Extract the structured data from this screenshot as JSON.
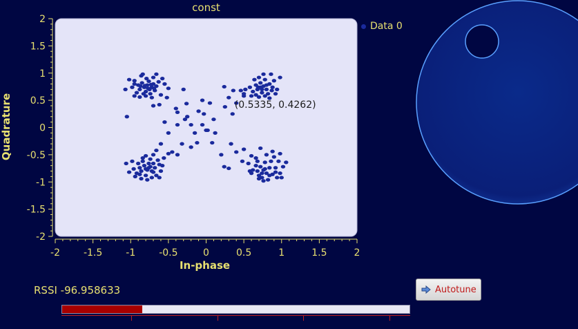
{
  "chart_data": {
    "type": "scatter",
    "title": "const",
    "xlabel": "In-phase",
    "ylabel": "Quadrature",
    "xlim": [
      -2,
      2
    ],
    "ylim": [
      -2,
      2
    ],
    "xticks": [
      "-2",
      "-1.5",
      "-1",
      "-0.5",
      "0",
      "0.5",
      "1",
      "1.5",
      "2"
    ],
    "yticks": [
      "2",
      "1.5",
      "1",
      "0.5",
      "0",
      "-0.5",
      "-1",
      "-1.5",
      "-2"
    ],
    "xtick_values": [
      -2,
      -1.5,
      -1,
      -0.5,
      0,
      0.5,
      1,
      1.5,
      2
    ],
    "ytick_values": [
      2,
      1.5,
      1,
      0.5,
      0,
      -0.5,
      -1,
      -1.5,
      -2
    ],
    "legend_position": "top-right",
    "annotation": "(0.5335, 0.4262)",
    "annotation_point": [
      0.5335,
      0.4262
    ],
    "series": [
      {
        "name": "Data 0",
        "color": "#1a2a9c",
        "points": [
          [
            -0.78,
            0.78
          ],
          [
            -0.82,
            0.74
          ],
          [
            -0.75,
            0.7
          ],
          [
            -0.7,
            0.8
          ],
          [
            -0.85,
            0.82
          ],
          [
            -0.8,
            0.66
          ],
          [
            -0.72,
            0.74
          ],
          [
            -0.88,
            0.7
          ],
          [
            -0.76,
            0.85
          ],
          [
            -0.68,
            0.68
          ],
          [
            -0.83,
            0.62
          ],
          [
            -0.74,
            0.62
          ],
          [
            -0.9,
            0.78
          ],
          [
            -0.66,
            0.76
          ],
          [
            -0.79,
            0.9
          ],
          [
            -0.86,
            0.95
          ],
          [
            -0.7,
            0.92
          ],
          [
            -0.95,
            0.86
          ],
          [
            -0.63,
            0.84
          ],
          [
            -0.92,
            0.64
          ],
          [
            -0.8,
            0.58
          ],
          [
            -0.72,
            0.55
          ],
          [
            -0.98,
            0.74
          ],
          [
            -1.02,
            0.88
          ],
          [
            -0.6,
            0.6
          ],
          [
            -0.88,
            0.56
          ],
          [
            -0.66,
            0.98
          ],
          [
            -0.84,
            0.98
          ],
          [
            -1.07,
            0.7
          ],
          [
            -0.55,
            0.8
          ],
          [
            -0.5,
            0.72
          ],
          [
            -0.62,
            0.42
          ],
          [
            -0.52,
            0.55
          ],
          [
            -0.95,
            0.58
          ],
          [
            -0.58,
            0.9
          ],
          [
            -0.77,
            0.72
          ],
          [
            -0.73,
            0.79
          ],
          [
            -0.81,
            0.77
          ],
          [
            -0.69,
            0.72
          ],
          [
            -0.87,
            0.76
          ],
          [
            0.76,
            0.76
          ],
          [
            0.72,
            0.82
          ],
          [
            0.8,
            0.7
          ],
          [
            0.68,
            0.7
          ],
          [
            0.84,
            0.8
          ],
          [
            0.74,
            0.64
          ],
          [
            0.88,
            0.74
          ],
          [
            0.66,
            0.78
          ],
          [
            0.78,
            0.88
          ],
          [
            0.7,
            0.92
          ],
          [
            0.62,
            0.66
          ],
          [
            0.82,
            0.62
          ],
          [
            0.9,
            0.86
          ],
          [
            0.64,
            0.88
          ],
          [
            0.76,
            0.98
          ],
          [
            0.86,
            0.98
          ],
          [
            0.94,
            0.7
          ],
          [
            0.58,
            0.74
          ],
          [
            0.7,
            0.56
          ],
          [
            0.84,
            0.54
          ],
          [
            0.92,
            0.62
          ],
          [
            0.98,
            0.92
          ],
          [
            0.6,
            0.58
          ],
          [
            0.52,
            0.7
          ],
          [
            0.46,
            0.68
          ],
          [
            0.74,
            0.7
          ],
          [
            0.8,
            0.78
          ],
          [
            0.69,
            0.74
          ],
          [
            0.87,
            0.68
          ],
          [
            0.36,
            0.68
          ],
          [
            0.24,
            0.75
          ],
          [
            0.5,
            0.62
          ],
          [
            0.78,
            0.58
          ],
          [
            0.66,
            0.6
          ],
          [
            0.72,
            0.74
          ],
          [
            -0.78,
            -0.78
          ],
          [
            -0.74,
            -0.72
          ],
          [
            -0.82,
            -0.7
          ],
          [
            -0.7,
            -0.82
          ],
          [
            -0.86,
            -0.8
          ],
          [
            -0.76,
            -0.66
          ],
          [
            -0.68,
            -0.74
          ],
          [
            -0.88,
            -0.74
          ],
          [
            -0.8,
            -0.88
          ],
          [
            -0.72,
            -0.92
          ],
          [
            -0.62,
            -0.68
          ],
          [
            -0.84,
            -0.62
          ],
          [
            -0.92,
            -0.84
          ],
          [
            -0.66,
            -0.88
          ],
          [
            -0.78,
            -0.96
          ],
          [
            -0.9,
            -0.66
          ],
          [
            -0.96,
            -0.76
          ],
          [
            -0.6,
            -0.8
          ],
          [
            -0.74,
            -0.58
          ],
          [
            -0.86,
            -0.94
          ],
          [
            -0.64,
            -0.6
          ],
          [
            -0.98,
            -0.62
          ],
          [
            -1.02,
            -0.82
          ],
          [
            -0.58,
            -0.7
          ],
          [
            -0.7,
            -0.5
          ],
          [
            -0.8,
            -0.52
          ],
          [
            -0.62,
            -0.92
          ],
          [
            -0.56,
            -0.56
          ],
          [
            -0.66,
            -0.42
          ],
          [
            -0.5,
            -0.48
          ],
          [
            -0.84,
            -0.56
          ],
          [
            -0.76,
            -0.74
          ],
          [
            -0.72,
            -0.8
          ],
          [
            -0.8,
            -0.76
          ],
          [
            -0.88,
            -0.86
          ],
          [
            -1.06,
            -0.66
          ],
          [
            -0.7,
            -0.66
          ],
          [
            -0.94,
            -0.9
          ],
          [
            0.76,
            -0.78
          ],
          [
            0.72,
            -0.72
          ],
          [
            0.8,
            -0.84
          ],
          [
            0.68,
            -0.8
          ],
          [
            0.84,
            -0.74
          ],
          [
            0.74,
            -0.92
          ],
          [
            0.88,
            -0.86
          ],
          [
            0.66,
            -0.7
          ],
          [
            0.78,
            -0.64
          ],
          [
            0.82,
            -0.96
          ],
          [
            0.7,
            -0.88
          ],
          [
            0.92,
            -0.74
          ],
          [
            0.62,
            -0.78
          ],
          [
            0.86,
            -0.62
          ],
          [
            0.94,
            -0.92
          ],
          [
            1.0,
            -0.92
          ],
          [
            0.9,
            -0.54
          ],
          [
            0.96,
            -0.62
          ],
          [
            1.02,
            -0.72
          ],
          [
            1.06,
            -0.64
          ],
          [
            0.98,
            -0.48
          ],
          [
            0.66,
            -0.56
          ],
          [
            0.56,
            -0.66
          ],
          [
            0.6,
            -0.52
          ],
          [
            0.76,
            -0.98
          ],
          [
            0.7,
            -0.94
          ],
          [
            0.72,
            -0.38
          ],
          [
            0.8,
            -0.5
          ],
          [
            0.88,
            -0.44
          ],
          [
            0.74,
            -0.84
          ],
          [
            0.78,
            -0.76
          ],
          [
            0.84,
            -0.88
          ],
          [
            0.68,
            -0.62
          ],
          [
            0.92,
            -0.82
          ],
          [
            0.6,
            -0.84
          ],
          [
            -0.2,
            0.05
          ],
          [
            -0.1,
            0.3
          ],
          [
            -0.25,
            0.2
          ],
          [
            0.05,
            0.45
          ],
          [
            -0.05,
            0.5
          ],
          [
            0.1,
            0.15
          ],
          [
            -0.15,
            -0.1
          ],
          [
            0.02,
            -0.05
          ],
          [
            -0.28,
            0.15
          ],
          [
            -0.38,
            0.05
          ],
          [
            -0.4,
            0.35
          ],
          [
            0.3,
            0.55
          ],
          [
            0.4,
            0.45
          ],
          [
            0.25,
            0.38
          ],
          [
            -0.03,
            0.25
          ],
          [
            0.08,
            -0.28
          ],
          [
            -0.12,
            -0.28
          ],
          [
            -0.32,
            -0.3
          ],
          [
            0.2,
            -0.5
          ],
          [
            0.4,
            -0.45
          ],
          [
            0.3,
            -0.75
          ],
          [
            0.5,
            -0.4
          ],
          [
            0.33,
            -0.3
          ],
          [
            -0.05,
            0.05
          ],
          [
            -0.55,
            0.1
          ],
          [
            -0.5,
            -0.1
          ],
          [
            -0.6,
            -0.3
          ],
          [
            -0.45,
            -0.45
          ],
          [
            -0.7,
            0.4
          ],
          [
            0.58,
            -0.8
          ],
          [
            0.0,
            -0.05
          ],
          [
            0.48,
            -0.62
          ],
          [
            -0.2,
            -0.36
          ],
          [
            -0.38,
            -0.5
          ],
          [
            -0.26,
            0.44
          ],
          [
            0.12,
            -0.1
          ],
          [
            -0.3,
            0.7
          ],
          [
            0.5,
            0.58
          ],
          [
            0.35,
            0.25
          ],
          [
            -0.95,
            0.8
          ],
          [
            0.98,
            -0.84
          ],
          [
            -1.05,
            0.2
          ],
          [
            -0.38,
            0.28
          ],
          [
            0.24,
            -0.72
          ]
        ]
      }
    ]
  },
  "legend": {
    "entries": [
      {
        "label": "Data 0",
        "color": "#1a2a9c"
      }
    ]
  },
  "rssi": {
    "label": "RSSI -96.958633",
    "level_fraction": 0.23
  },
  "autotune": {
    "label": "Autotune",
    "icon": "arrow-right-icon"
  },
  "colors": {
    "background": "#000642",
    "plot_area": "#e4e4f8",
    "text": "#e8e070",
    "marker": "#1a2a9c",
    "rssi_fill": "#a80000",
    "knob_edge": "#5aa0ff"
  }
}
